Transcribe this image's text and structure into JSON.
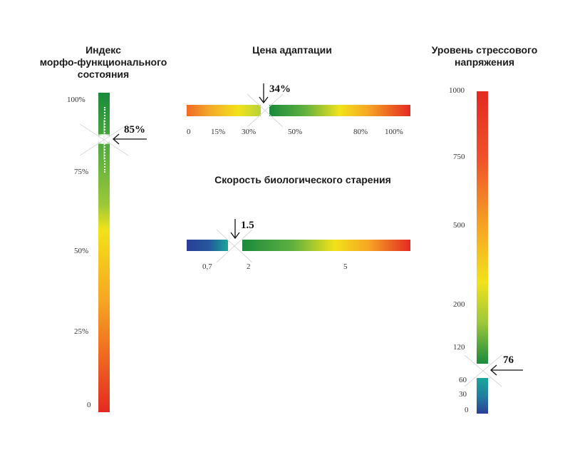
{
  "left": {
    "title_lines": [
      "Индекс",
      "морфо-функционального",
      "состояния"
    ],
    "ticks": [
      "100%",
      "75%",
      "50%",
      "25%",
      "0"
    ],
    "value": "85%"
  },
  "adaptation": {
    "title": "Цена адаптации",
    "ticks": [
      "0",
      "15%",
      "30%",
      "50%",
      "80%",
      "100%"
    ],
    "value": "34%"
  },
  "aging": {
    "title": "Скорость биологического старения",
    "ticks": [
      "0,7",
      "2",
      "5"
    ],
    "value": "1.5"
  },
  "stress": {
    "title_lines": [
      "Уровень стрессового",
      "напряжения"
    ],
    "ticks": [
      "1000",
      "750",
      "500",
      "200",
      "120",
      "60",
      "30",
      "0"
    ],
    "value": "76"
  },
  "colors": {
    "green": "#1a8a3c",
    "yellow": "#f2e21a",
    "orange": "#f08a1e",
    "red": "#e42a22",
    "blue": "#2b3f96",
    "teal": "#1aa79a"
  }
}
